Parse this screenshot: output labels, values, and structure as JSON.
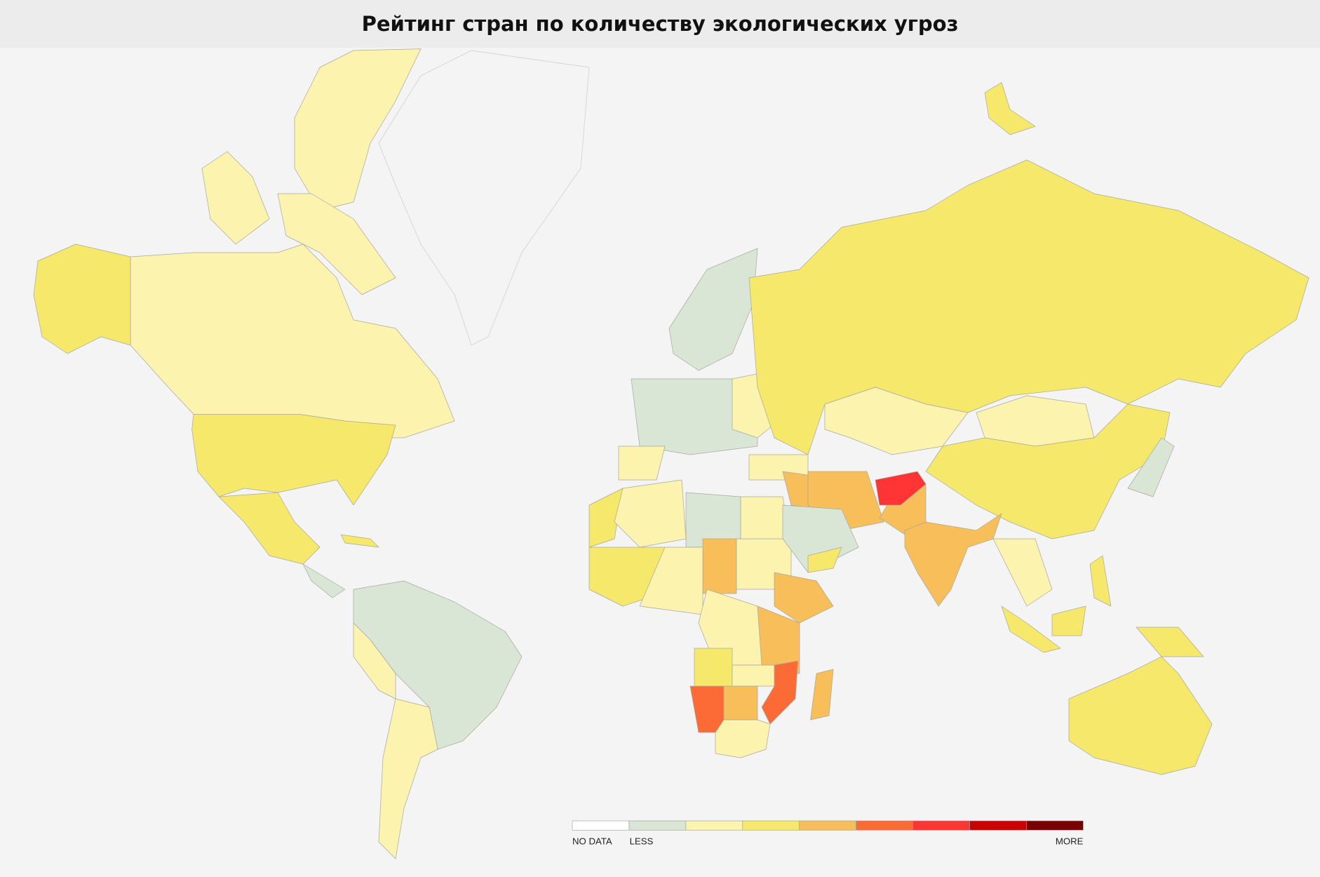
{
  "header": {
    "title": "Рейтинг стран по количеству экологических угроз"
  },
  "legend": {
    "colors": [
      "#ffffff",
      "#d9e6d5",
      "#fbf3ae",
      "#f5e86a",
      "#f7be5a",
      "#fc6b36",
      "#ff3535",
      "#cc0000",
      "#7a0000"
    ],
    "labels": {
      "no_data": "NO DATA",
      "less": "LESS",
      "more": "MORE"
    }
  }
}
